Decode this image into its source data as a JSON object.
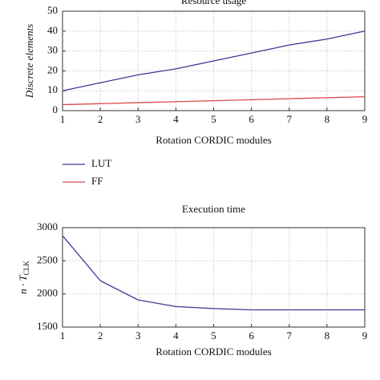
{
  "chart_data": [
    {
      "type": "line",
      "title": "Resource usage",
      "xlabel": "Rotation CORDIC modules",
      "ylabel": "Discrete elements",
      "x": [
        1,
        2,
        3,
        4,
        5,
        6,
        7,
        8,
        9
      ],
      "series": [
        {
          "name": "LUT",
          "color": "#3a3a9a",
          "values": [
            10,
            14,
            18,
            21,
            25,
            29,
            33,
            36,
            40
          ]
        },
        {
          "name": "FF",
          "color": "#d84a4a",
          "values": [
            3,
            3.5,
            4,
            4.5,
            5,
            5.5,
            6,
            6.5,
            7
          ]
        }
      ],
      "xlim": [
        1,
        9
      ],
      "xticks": [
        1,
        2,
        3,
        4,
        5,
        6,
        7,
        8,
        9
      ],
      "ylim": [
        0,
        50
      ],
      "yticks": [
        0,
        10,
        20,
        30,
        40,
        50
      ],
      "grid": true,
      "legend": "below"
    },
    {
      "type": "line",
      "title": "Execution time",
      "xlabel": "Rotation CORDIC modules",
      "ylabel": "n · T",
      "ylabel_sub": "CLK",
      "x": [
        1,
        2,
        3,
        4,
        5,
        6,
        7,
        8,
        9
      ],
      "series": [
        {
          "color": "#3a3a9a",
          "values": [
            2880,
            2200,
            1910,
            1810,
            1780,
            1760,
            1760,
            1760,
            1760
          ]
        }
      ],
      "xlim": [
        1,
        9
      ],
      "xticks": [
        1,
        2,
        3,
        4,
        5,
        6,
        7,
        8,
        9
      ],
      "ylim": [
        1500,
        3000
      ],
      "yticks": [
        1500,
        2000,
        2500,
        3000
      ],
      "grid": true
    }
  ]
}
